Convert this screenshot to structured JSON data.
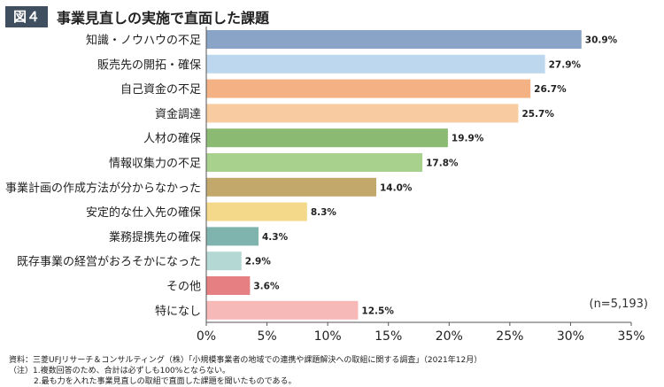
{
  "header": {
    "figure_label": "図４",
    "title": "事業見直しの実施で直面した課題"
  },
  "note": "(n=5,193)",
  "footer": {
    "source": "資料：三菱UFJリサーチ＆コンサルティング（株）「小規模事業者の地域での連携や課題解決への取組に関する調査」（2021年12月）",
    "note1": "（注）1.複数回答のため、合計は必ずしも100%とならない。",
    "note2": "2.最も力を入れた事業見直しの取組で直面した課題を聞いたものである。"
  },
  "chart_data": {
    "type": "bar",
    "orientation": "horizontal",
    "title": "事業見直しの実施で直面した課題",
    "categories": [
      "知識・ノウハウの不足",
      "販売先の開拓・確保",
      "自己資金の不足",
      "資金調達",
      "人材の確保",
      "情報収集力の不足",
      "事業計画の作成方法が分からなかった",
      "安定的な仕入先の確保",
      "業務提携先の確保",
      "既存事業の経営がおろそかになった",
      "その他",
      "特になし"
    ],
    "values": [
      30.9,
      27.9,
      26.7,
      25.7,
      19.9,
      17.8,
      14.0,
      8.3,
      4.3,
      2.9,
      3.6,
      12.5
    ],
    "value_labels": [
      "30.9%",
      "27.9%",
      "26.7%",
      "25.7%",
      "19.9%",
      "17.8%",
      "14.0%",
      "8.3%",
      "4.3%",
      "2.9%",
      "3.6%",
      "12.5%"
    ],
    "colors": [
      "#8aa4c8",
      "#bdd7ee",
      "#f4b183",
      "#f8cba0",
      "#8bbb73",
      "#a9d18e",
      "#c2a86a",
      "#f5d98b",
      "#7fb3ae",
      "#b4d9d4",
      "#e57f81",
      "#f7b8b8"
    ],
    "xlim": [
      0,
      35
    ],
    "xticks": [
      0,
      5,
      10,
      15,
      20,
      25,
      30,
      35
    ],
    "xtick_labels": [
      "0%",
      "5%",
      "10%",
      "15%",
      "20%",
      "25%",
      "30%",
      "35%"
    ],
    "grid": false
  }
}
